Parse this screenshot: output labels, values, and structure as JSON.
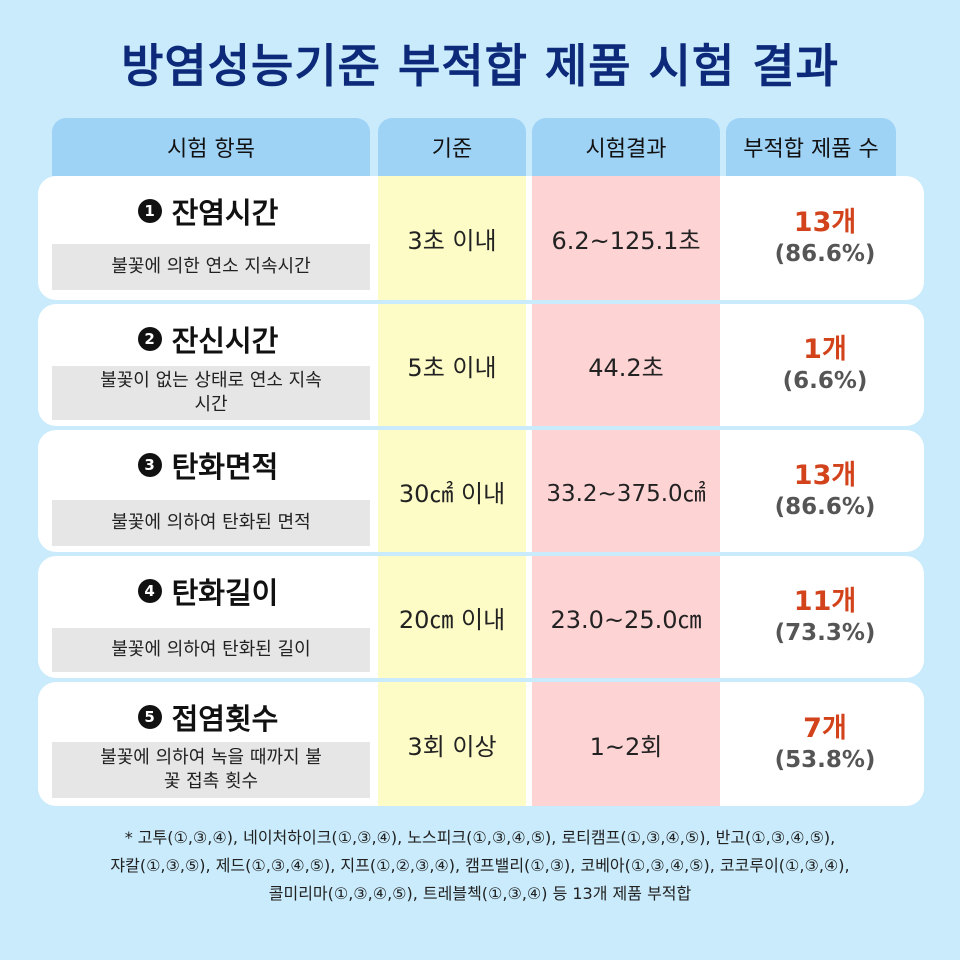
{
  "title": "방염성능기준 부적합 제품 시험 결과",
  "headers": [
    "시험 항목",
    "기준",
    "시험결과",
    "부적합 제품 수"
  ],
  "rows": [
    {
      "num": "1",
      "title": "잔염시간",
      "desc": "불꽃에 의한 연소 지속시간",
      "criterion": "3초 이내",
      "result": "6.2~125.1초",
      "count": "13개",
      "percent": "(86.6%)"
    },
    {
      "num": "2",
      "title": "잔신시간",
      "desc": "불꽃이 없는 상태로 연소 지속시간",
      "criterion": "5초 이내",
      "result": "44.2초",
      "count": "1개",
      "percent": "(6.6%)"
    },
    {
      "num": "3",
      "title": "탄화면적",
      "desc": "불꽃에 의하여 탄화된 면적",
      "criterion": "30㎠ 이내",
      "result": "33.2~375.0㎠",
      "count": "13개",
      "percent": "(86.6%)"
    },
    {
      "num": "4",
      "title": "탄화길이",
      "desc": "불꽃에 의하여 탄화된 길이",
      "criterion": "20㎝ 이내",
      "result": "23.0~25.0㎝",
      "count": "11개",
      "percent": "(73.3%)"
    },
    {
      "num": "5",
      "title": "접염횟수",
      "desc": "불꽃에 의하여 녹을 때까지 불꽃 접촉 횟수",
      "criterion": "3회 이상",
      "result": "1~2회",
      "count": "7개",
      "percent": "(53.8%)"
    }
  ],
  "footnote": [
    "* 고투(①,③,④), 네이처하이크(①,③,④), 노스피크(①,③,④,⑤), 로티캠프(①,③,④,⑤), 반고(①,③,④,⑤),",
    "쟈칼(①,③,⑤), 제드(①,③,④,⑤), 지프(①,②,③,④), 캠프밸리(①,③), 코베아(①,③,④,⑤), 코코루이(①,③,④),",
    "콜미리마(①,③,④,⑤), 트레블첵(①,③,④) 등 13개 제품 부적합"
  ]
}
